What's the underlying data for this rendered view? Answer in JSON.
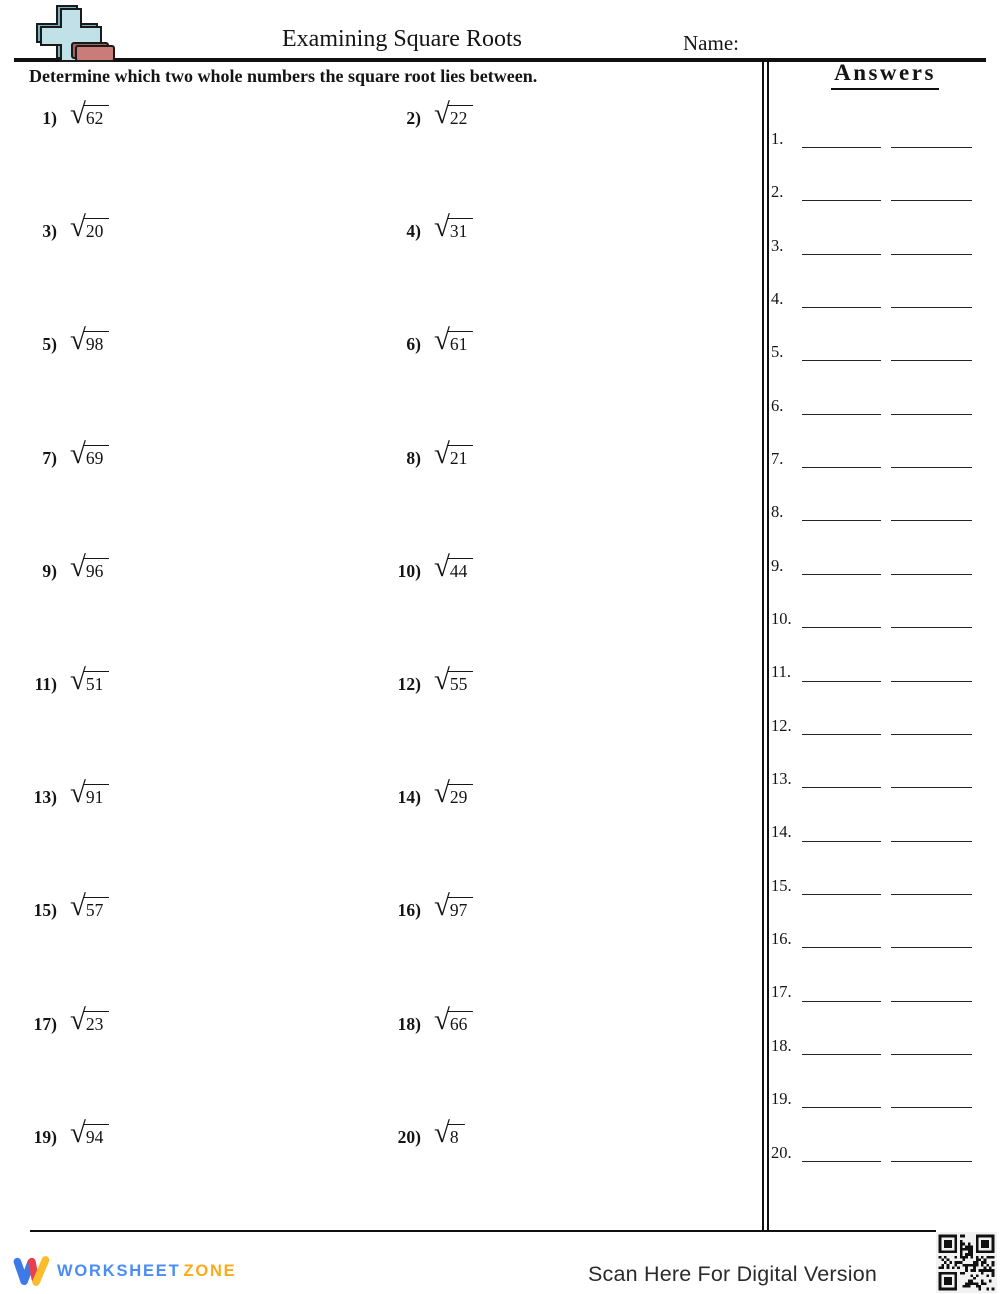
{
  "header": {
    "title": "Examining Square Roots",
    "name_label": "Name:"
  },
  "instructions": "Determine which two whole numbers the square root lies between.",
  "problems": [
    {
      "num": "1)",
      "radicand": "62"
    },
    {
      "num": "2)",
      "radicand": "22"
    },
    {
      "num": "3)",
      "radicand": "20"
    },
    {
      "num": "4)",
      "radicand": "31"
    },
    {
      "num": "5)",
      "radicand": "98"
    },
    {
      "num": "6)",
      "radicand": "61"
    },
    {
      "num": "7)",
      "radicand": "69"
    },
    {
      "num": "8)",
      "radicand": "21"
    },
    {
      "num": "9)",
      "radicand": "96"
    },
    {
      "num": "10)",
      "radicand": "44"
    },
    {
      "num": "11)",
      "radicand": "51"
    },
    {
      "num": "12)",
      "radicand": "55"
    },
    {
      "num": "13)",
      "radicand": "91"
    },
    {
      "num": "14)",
      "radicand": "29"
    },
    {
      "num": "15)",
      "radicand": "57"
    },
    {
      "num": "16)",
      "radicand": "97"
    },
    {
      "num": "17)",
      "radicand": "23"
    },
    {
      "num": "18)",
      "radicand": "66"
    },
    {
      "num": "19)",
      "radicand": "94"
    },
    {
      "num": "20)",
      "radicand": "8"
    }
  ],
  "answers": {
    "heading": "Answers",
    "blanks_per_item": 2,
    "numbers": [
      "1.",
      "2.",
      "3.",
      "4.",
      "5.",
      "6.",
      "7.",
      "8.",
      "9.",
      "10.",
      "11.",
      "12.",
      "13.",
      "14.",
      "15.",
      "16.",
      "17.",
      "18.",
      "19.",
      "20."
    ]
  },
  "footer": {
    "brand_word1": "WORKSHEET",
    "brand_word2": "ZONE",
    "scan_text": "Scan Here For Digital Version"
  },
  "icons": {
    "plus_brick": "plus-brick-icon",
    "logo_mark": "worksheetzone-w-icon",
    "qr": "qr-code-icon"
  },
  "colors": {
    "rule": "#101010",
    "brand_blue": "#4a8cf5",
    "brand_orange": "#fbaa19",
    "logo_red": "#e8404e",
    "logo_yellow": "#fbbc2c",
    "icon_cross_fill": "#c0e1e7",
    "icon_brick_fill": "#c97c78"
  }
}
